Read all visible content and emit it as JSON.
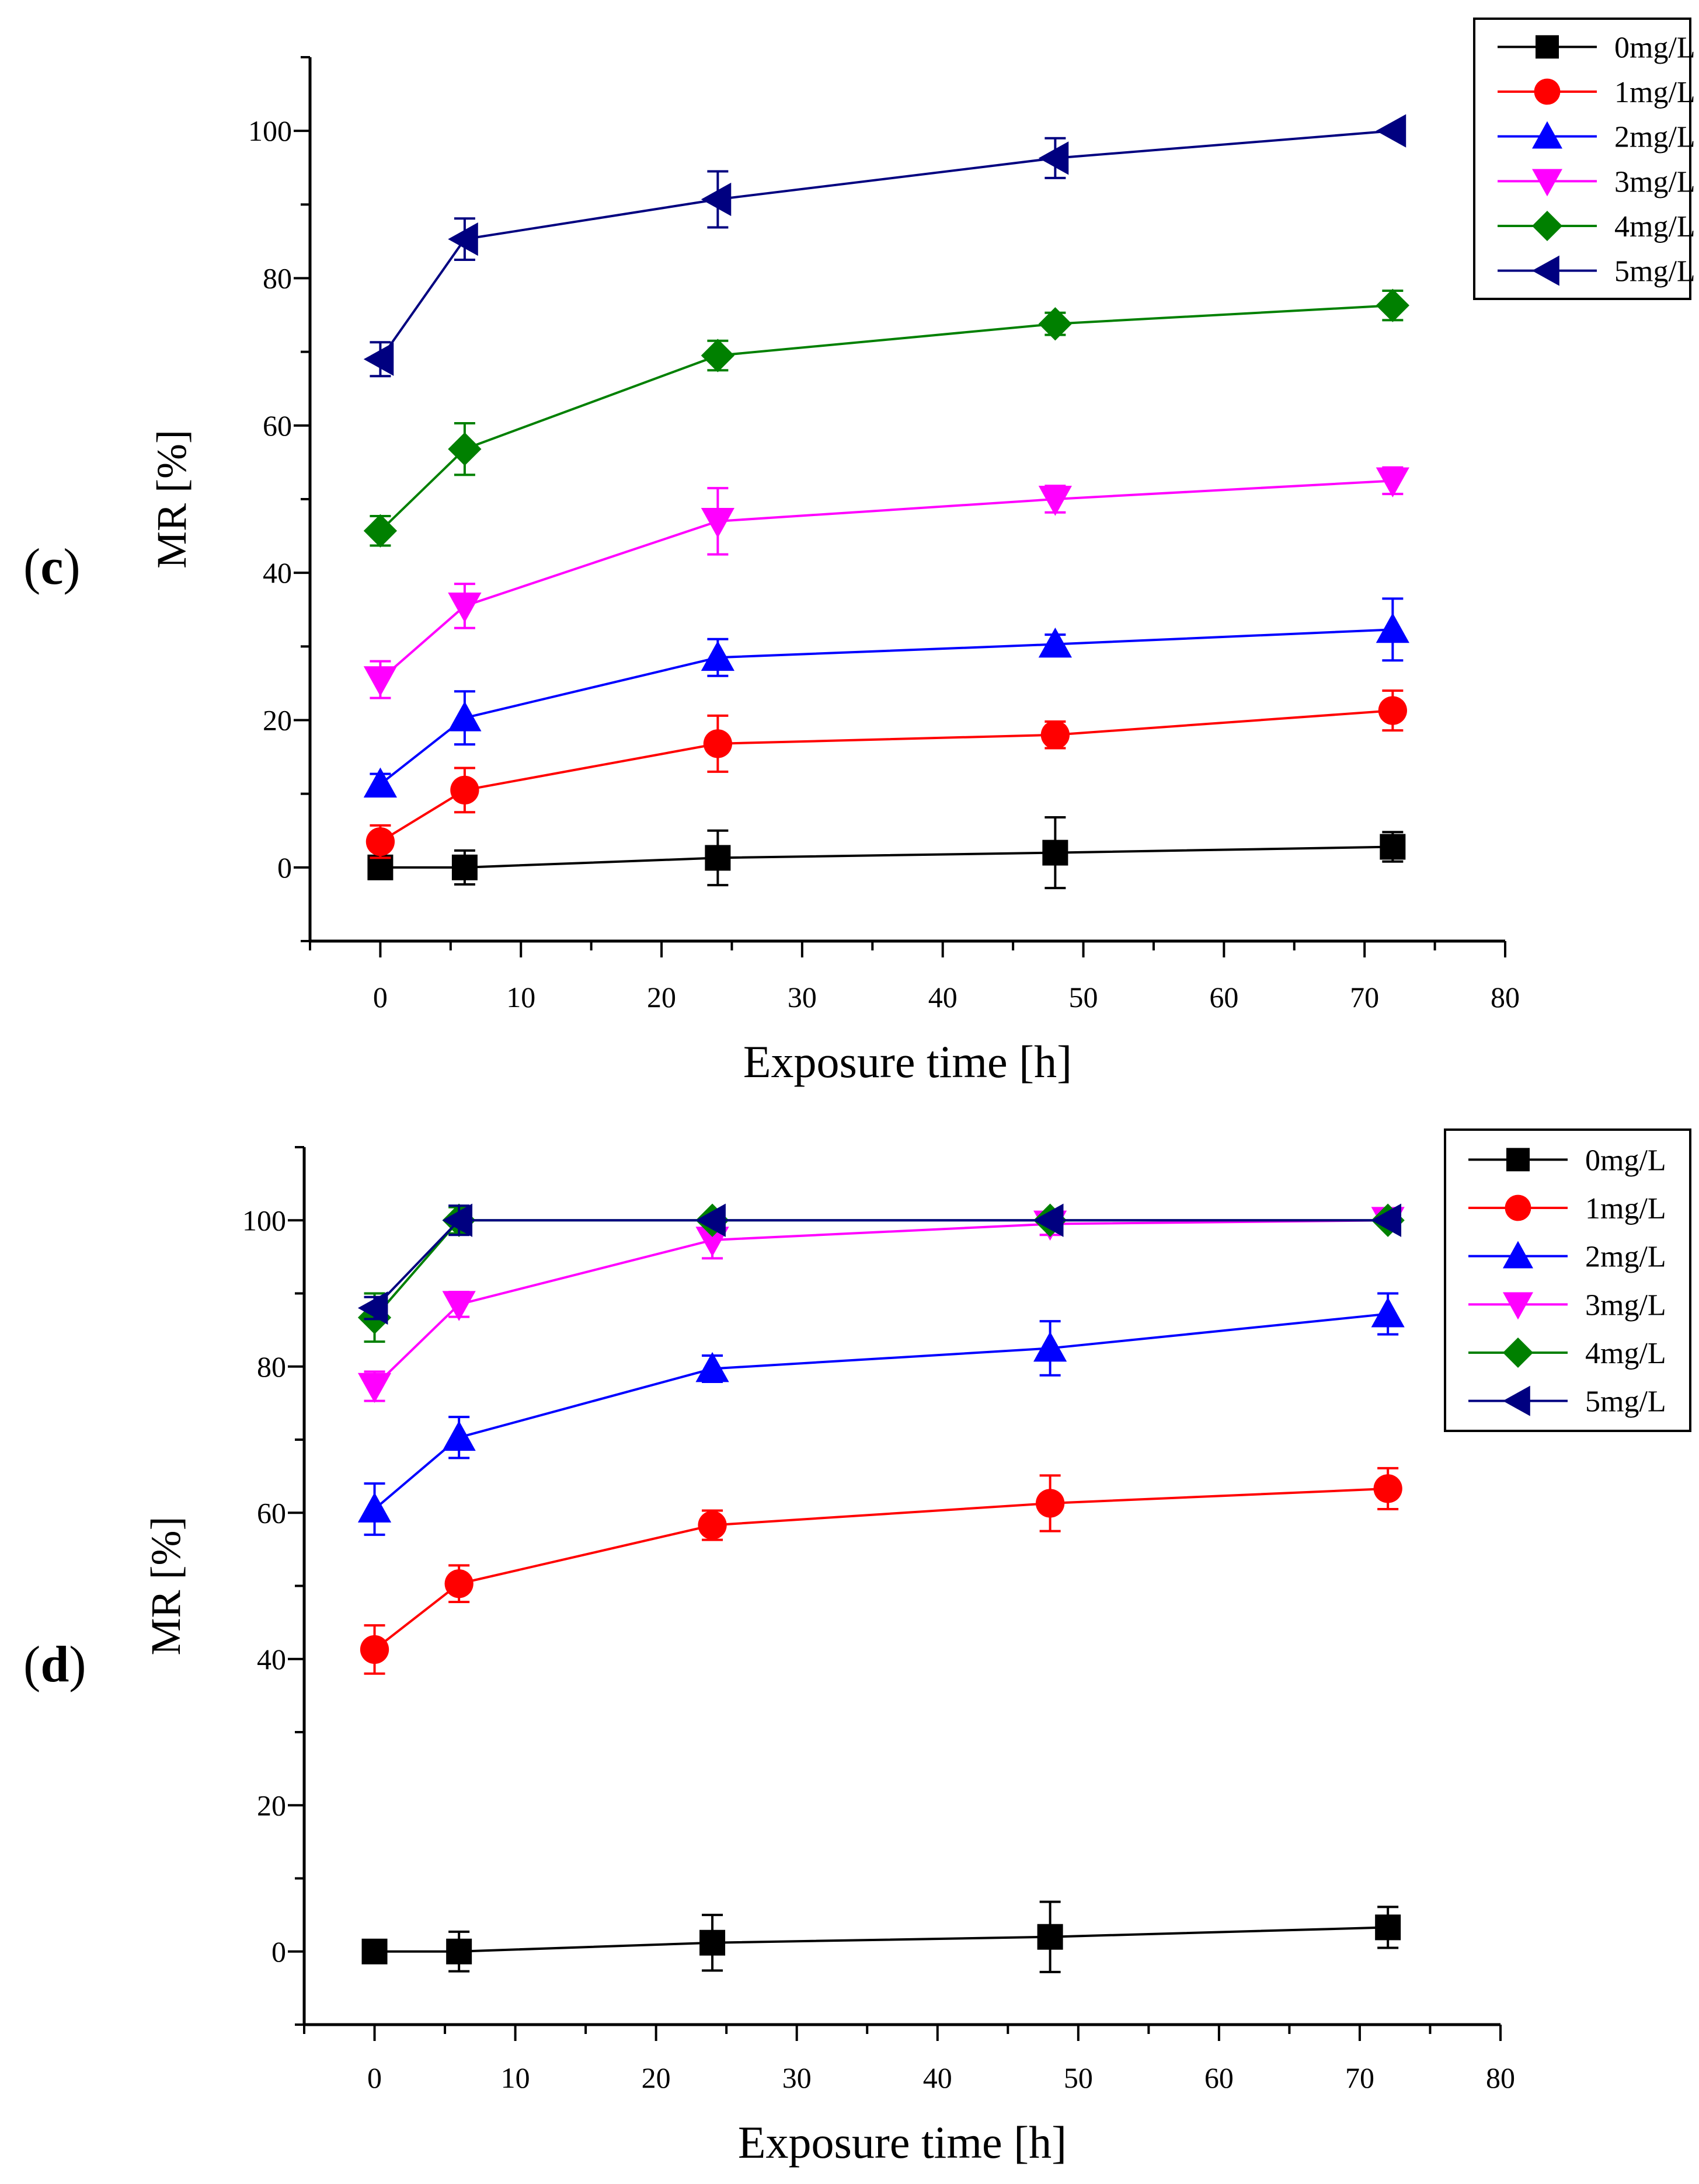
{
  "chart_data": [
    {
      "panel_label": "(c)",
      "type": "line",
      "xlabel": "Exposure time [h]",
      "ylabel": "MR [%]",
      "xlim": [
        -5,
        80
      ],
      "ylim": [
        -10,
        110
      ],
      "xticks": [
        0,
        10,
        20,
        30,
        40,
        50,
        60,
        70,
        80
      ],
      "yticks": [
        0,
        20,
        40,
        60,
        80,
        100
      ],
      "legend_position": "top-right",
      "x": [
        0,
        6,
        24,
        48,
        72
      ],
      "series": [
        {
          "name": "0mg/L",
          "color": "#000000",
          "marker": "square",
          "values": [
            0,
            0,
            1.3,
            2.0,
            2.8
          ],
          "errors": [
            0.3,
            2.3,
            3.7,
            4.8,
            2.0
          ]
        },
        {
          "name": "1mg/L",
          "color": "#ff0000",
          "marker": "circle",
          "values": [
            3.5,
            10.5,
            16.8,
            18.0,
            21.3
          ],
          "errors": [
            2.2,
            3.0,
            3.8,
            1.8,
            2.7
          ]
        },
        {
          "name": "2mg/L",
          "color": "#0000ff",
          "marker": "triangle-up",
          "values": [
            11.3,
            20.3,
            28.5,
            30.3,
            32.3
          ],
          "errors": [
            1.4,
            3.6,
            2.5,
            1.3,
            4.2
          ]
        },
        {
          "name": "3mg/L",
          "color": "#ff00ff",
          "marker": "triangle-down",
          "values": [
            25.5,
            35.5,
            47.0,
            50.0,
            52.5
          ],
          "errors": [
            2.5,
            3.0,
            4.5,
            1.8,
            1.8
          ]
        },
        {
          "name": "4mg/L",
          "color": "#008000",
          "marker": "diamond",
          "values": [
            45.7,
            56.8,
            69.5,
            73.8,
            76.3
          ],
          "errors": [
            2.0,
            3.5,
            2.0,
            1.5,
            2.0
          ]
        },
        {
          "name": "5mg/L",
          "color": "#000080",
          "marker": "triangle-left",
          "values": [
            69.0,
            85.3,
            90.7,
            96.3,
            100.0
          ],
          "errors": [
            2.3,
            2.8,
            3.8,
            2.7,
            0.3
          ]
        }
      ]
    },
    {
      "panel_label": "(d)",
      "type": "line",
      "xlabel": "Exposure time [h]",
      "ylabel": "MR [%]",
      "xlim": [
        -5,
        80
      ],
      "ylim": [
        -10,
        110
      ],
      "xticks": [
        0,
        10,
        20,
        30,
        40,
        50,
        60,
        70,
        80
      ],
      "yticks": [
        0,
        20,
        40,
        60,
        80,
        100
      ],
      "legend_position": "top-right",
      "x": [
        0,
        6,
        24,
        48,
        72
      ],
      "series": [
        {
          "name": "0mg/L",
          "color": "#000000",
          "marker": "square",
          "values": [
            0,
            0,
            1.2,
            2.0,
            3.3
          ],
          "errors": [
            0.3,
            2.7,
            3.8,
            4.8,
            2.8
          ]
        },
        {
          "name": "1mg/L",
          "color": "#ff0000",
          "marker": "circle",
          "values": [
            41.3,
            50.3,
            58.3,
            61.3,
            63.3
          ],
          "errors": [
            3.3,
            2.5,
            2.0,
            3.8,
            2.8
          ]
        },
        {
          "name": "2mg/L",
          "color": "#0000ff",
          "marker": "triangle-up",
          "values": [
            60.5,
            70.3,
            79.7,
            82.5,
            87.2
          ],
          "errors": [
            3.5,
            2.8,
            1.8,
            3.7,
            2.8
          ]
        },
        {
          "name": "3mg/L",
          "color": "#ff00ff",
          "marker": "triangle-down",
          "values": [
            77.3,
            88.5,
            97.3,
            99.5,
            100.0
          ],
          "errors": [
            2.0,
            1.7,
            2.5,
            1.5,
            0.3
          ]
        },
        {
          "name": "4mg/L",
          "color": "#008000",
          "marker": "diamond",
          "values": [
            86.7,
            100.0,
            100.0,
            100.0,
            100.0
          ],
          "errors": [
            3.3,
            1.8,
            0.3,
            0.3,
            0.3
          ]
        },
        {
          "name": "5mg/L",
          "color": "#000080",
          "marker": "triangle-left",
          "values": [
            88.0,
            100.0,
            100.0,
            100.0,
            100.0
          ],
          "errors": [
            1.5,
            2.0,
            0.3,
            0.3,
            0.3
          ]
        }
      ]
    }
  ]
}
